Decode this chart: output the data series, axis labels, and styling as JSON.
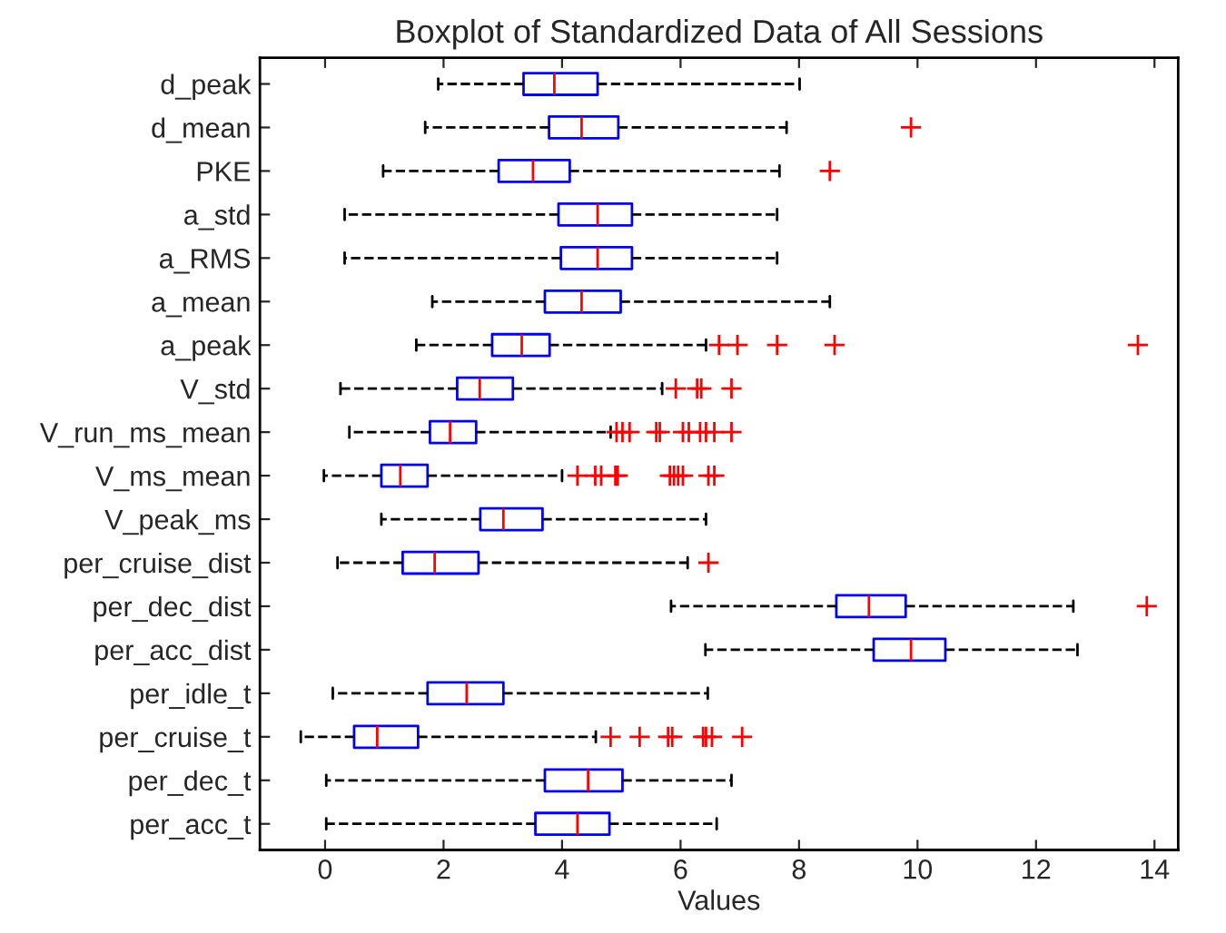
{
  "chart_data": {
    "type": "box",
    "orientation": "horizontal",
    "title": "Boxplot of Standardized Data of All Sessions",
    "xlabel": "Values",
    "categories": [
      "d_peak",
      "d_mean",
      "PKE",
      "a_std",
      "a_RMS",
      "a_mean",
      "a_peak",
      "V_std",
      "V_run_ms_mean",
      "V_ms_mean",
      "V_peak_ms",
      "per_cruise_dist",
      "per_dec_dist",
      "per_acc_dist",
      "per_idle_t",
      "per_cruise_t",
      "per_dec_t",
      "per_acc_t"
    ],
    "xlim": [
      -1.1,
      14.4
    ],
    "xticks": [
      0,
      2,
      4,
      6,
      8,
      10,
      12,
      14
    ],
    "grid": false,
    "marker": "cross",
    "line_style": "dashed",
    "series": [
      {
        "color": "#0000ff",
        "boxes": [
          {
            "low": 1.91,
            "q1": 3.35,
            "median": 3.87,
            "q3": 4.6,
            "high": 8.01
          },
          {
            "low": 1.69,
            "q1": 3.78,
            "median": 4.33,
            "q3": 4.95,
            "high": 7.79,
            "outliers": [
              9.89
            ]
          },
          {
            "low": 0.98,
            "q1": 2.93,
            "median": 3.51,
            "q3": 4.13,
            "high": 7.67,
            "outliers": [
              8.52
            ]
          },
          {
            "low": 0.33,
            "q1": 3.94,
            "median": 4.6,
            "q3": 5.18,
            "high": 7.63
          },
          {
            "low": 0.33,
            "q1": 3.98,
            "median": 4.6,
            "q3": 5.18,
            "high": 7.63
          },
          {
            "low": 1.81,
            "q1": 3.71,
            "median": 4.33,
            "q3": 4.99,
            "high": 8.52
          },
          {
            "low": 1.54,
            "q1": 2.82,
            "median": 3.32,
            "q3": 3.79,
            "high": 6.43,
            "outliers": [
              6.65,
              6.96,
              7.63,
              8.6,
              13.72
            ]
          },
          {
            "low": 0.26,
            "q1": 2.23,
            "median": 2.61,
            "q3": 3.17,
            "high": 5.69,
            "outliers": [
              5.92,
              6.28,
              6.35,
              6.86
            ]
          },
          {
            "low": 0.41,
            "q1": 1.77,
            "median": 2.11,
            "q3": 2.55,
            "high": 4.82,
            "outliers": [
              4.92,
              5.02,
              5.14,
              5.59,
              5.65,
              6.04,
              6.14,
              6.33,
              6.43,
              6.57,
              6.86
            ]
          },
          {
            "low": -0.02,
            "q1": 0.95,
            "median": 1.27,
            "q3": 1.73,
            "high": 4.0,
            "outliers": [
              4.26,
              4.56,
              4.66,
              4.9,
              4.94,
              5.82,
              5.89,
              5.96,
              6.04,
              6.47,
              6.57
            ]
          },
          {
            "low": 0.95,
            "q1": 2.62,
            "median": 3.01,
            "q3": 3.67,
            "high": 6.43
          },
          {
            "low": 0.21,
            "q1": 1.31,
            "median": 1.85,
            "q3": 2.59,
            "high": 6.12,
            "outliers": [
              6.47
            ]
          },
          {
            "low": 5.84,
            "q1": 8.63,
            "median": 9.18,
            "q3": 9.8,
            "high": 12.63,
            "outliers": [
              13.87
            ]
          },
          {
            "low": 6.42,
            "q1": 9.26,
            "median": 9.89,
            "q3": 10.47,
            "high": 12.7
          },
          {
            "low": 0.13,
            "q1": 1.73,
            "median": 2.39,
            "q3": 3.01,
            "high": 6.46
          },
          {
            "low": -0.41,
            "q1": 0.49,
            "median": 0.88,
            "q3": 1.57,
            "high": 4.57,
            "outliers": [
              4.82,
              5.31,
              5.79,
              5.86,
              6.38,
              6.43,
              6.53,
              7.04
            ]
          },
          {
            "low": 0.02,
            "q1": 3.71,
            "median": 4.44,
            "q3": 5.02,
            "high": 6.86
          },
          {
            "low": 0.02,
            "q1": 3.55,
            "median": 4.26,
            "q3": 4.8,
            "high": 6.61
          }
        ]
      }
    ]
  }
}
